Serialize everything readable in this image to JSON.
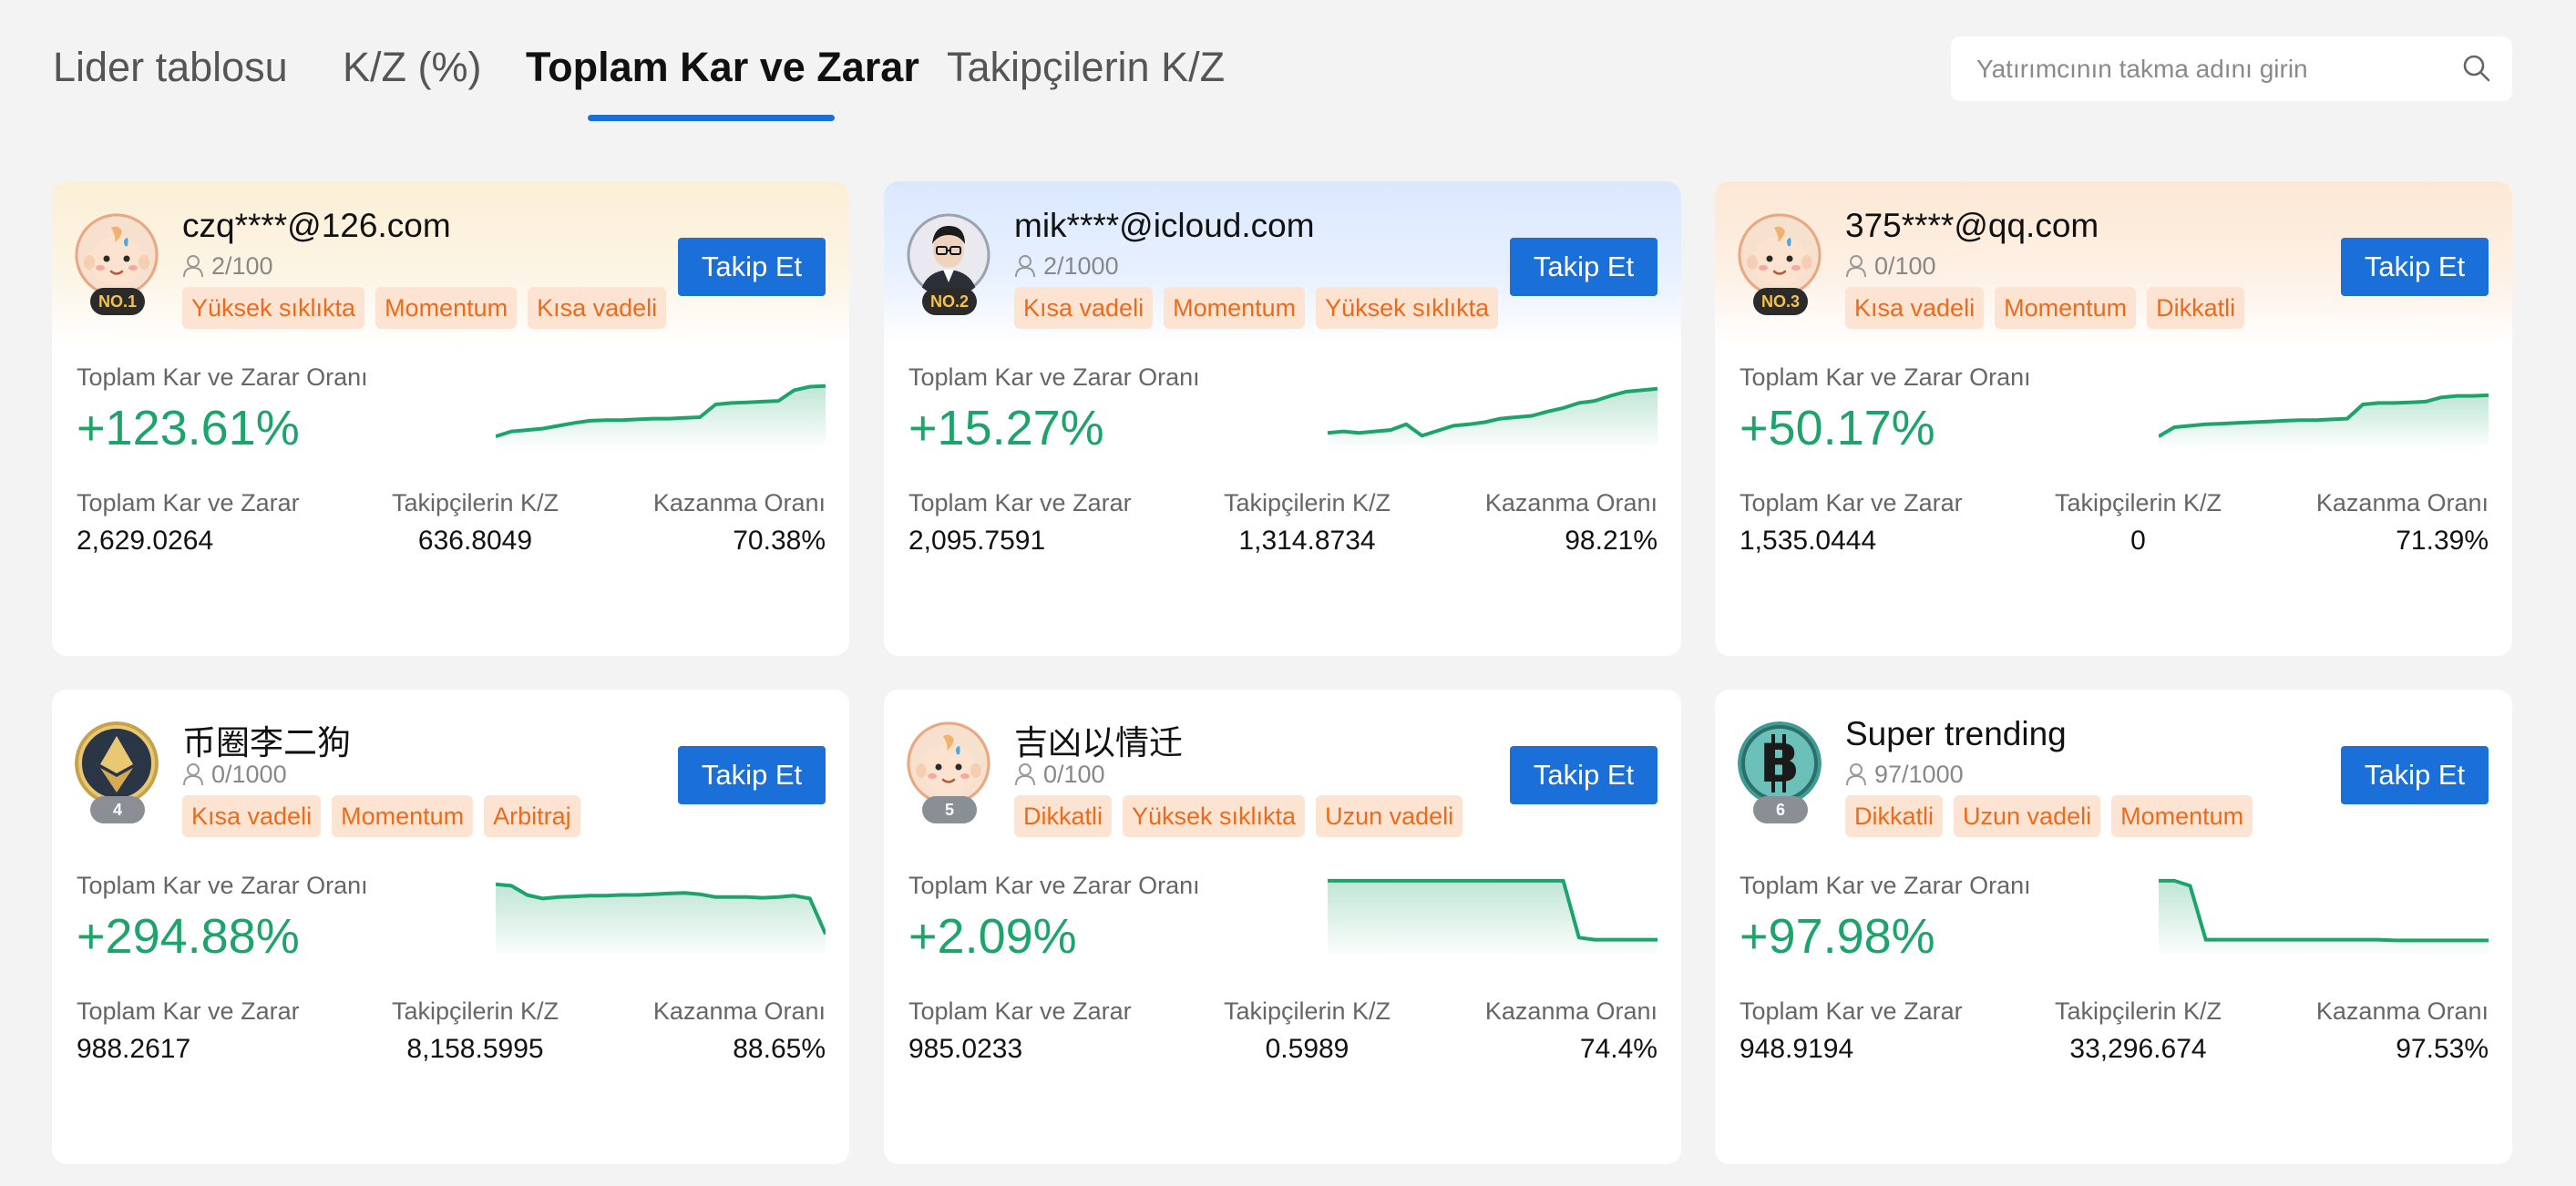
{
  "tabs": [
    {
      "label": "Lider tablosu"
    },
    {
      "label": "K/Z (%)"
    },
    {
      "label": "Toplam Kar ve Zarar"
    },
    {
      "label": "Takipçilerin K/Z"
    }
  ],
  "active_tab": 2,
  "search": {
    "placeholder": "Yatırımcının takma adını girin",
    "icon": "search-icon"
  },
  "labels": {
    "follow": "Takip Et",
    "ratio": "Toplam Kar ve Zarar Oranı",
    "total_pnl": "Toplam Kar ve Zarar",
    "follower_pnl": "Takipçilerin K/Z",
    "win_rate": "Kazanma Oranı"
  },
  "colors": {
    "accent": "#1a6fd9",
    "positive": "#1da46b",
    "tag_text": "#ee6a1a",
    "tag_bg": "#fde4d2"
  },
  "cards": [
    {
      "rank": "NO.1",
      "name": "czq****@126.com",
      "followers": "2/100",
      "avatar": "baby-avatar",
      "tags": [
        "Yüksek sıklıkta",
        "Momentum",
        "Kısa vadeli"
      ],
      "ratio": "+123.61%",
      "total_pnl": "2,629.0264",
      "follower_pnl": "636.8049",
      "win_rate": "70.38%",
      "trend": [
        0.05,
        0.12,
        0.14,
        0.16,
        0.2,
        0.24,
        0.27,
        0.28,
        0.28,
        0.29,
        0.3,
        0.3,
        0.31,
        0.32,
        0.5,
        0.52,
        0.53,
        0.54,
        0.55,
        0.7,
        0.75,
        0.76
      ]
    },
    {
      "rank": "NO.2",
      "name": "mik****@icloud.com",
      "followers": "2/1000",
      "avatar": "man-glasses-avatar",
      "tags": [
        "Kısa vadeli",
        "Momentum",
        "Yüksek sıklıkta"
      ],
      "ratio": "+15.27%",
      "total_pnl": "2,095.7591",
      "follower_pnl": "1,314.8734",
      "win_rate": "98.21%",
      "trend": [
        0.1,
        0.12,
        0.1,
        0.12,
        0.14,
        0.22,
        0.06,
        0.13,
        0.2,
        0.22,
        0.25,
        0.3,
        0.32,
        0.34,
        0.4,
        0.45,
        0.52,
        0.55,
        0.62,
        0.68,
        0.7,
        0.72
      ]
    },
    {
      "rank": "NO.3",
      "name": "375****@qq.com",
      "followers": "0/100",
      "avatar": "baby-avatar",
      "tags": [
        "Kısa vadeli",
        "Momentum",
        "Dikkatli"
      ],
      "ratio": "+50.17%",
      "total_pnl": "1,535.0444",
      "follower_pnl": "0",
      "win_rate": "71.39%",
      "trend": [
        0.05,
        0.18,
        0.2,
        0.22,
        0.23,
        0.24,
        0.25,
        0.26,
        0.27,
        0.28,
        0.28,
        0.29,
        0.3,
        0.5,
        0.52,
        0.52,
        0.53,
        0.54,
        0.6,
        0.62,
        0.62,
        0.63
      ]
    },
    {
      "rank": "4",
      "name": "币圈李二狗",
      "followers": "0/1000",
      "avatar": "eth-coin-avatar",
      "tags": [
        "Kısa vadeli",
        "Momentum",
        "Arbitraj"
      ],
      "ratio": "+294.88%",
      "total_pnl": "988.2617",
      "follower_pnl": "8,158.5995",
      "win_rate": "88.65%",
      "trend": [
        0.9,
        0.88,
        0.75,
        0.7,
        0.72,
        0.73,
        0.74,
        0.74,
        0.75,
        0.75,
        0.76,
        0.77,
        0.78,
        0.76,
        0.72,
        0.72,
        0.72,
        0.71,
        0.72,
        0.74,
        0.7,
        0.2
      ]
    },
    {
      "rank": "5",
      "name": "吉凶以情迁",
      "followers": "0/100",
      "avatar": "baby-avatar",
      "tags": [
        "Dikkatli",
        "Yüksek sıklıkta",
        "Uzun vadeli"
      ],
      "ratio": "+2.09%",
      "total_pnl": "985.0233",
      "follower_pnl": "0.5989",
      "win_rate": "74.4%",
      "trend": [
        0.95,
        0.95,
        0.95,
        0.95,
        0.95,
        0.95,
        0.95,
        0.95,
        0.95,
        0.95,
        0.95,
        0.95,
        0.95,
        0.95,
        0.95,
        0.95,
        0.15,
        0.12,
        0.12,
        0.12,
        0.12,
        0.12
      ]
    },
    {
      "rank": "6",
      "name": "Super trending",
      "followers": "97/1000",
      "avatar": "btc-coin-avatar",
      "tags": [
        "Dikkatli",
        "Uzun vadeli",
        "Momentum"
      ],
      "ratio": "+97.98%",
      "total_pnl": "948.9194",
      "follower_pnl": "33,296.674",
      "win_rate": "97.53%",
      "trend": [
        0.95,
        0.95,
        0.88,
        0.12,
        0.12,
        0.12,
        0.12,
        0.12,
        0.12,
        0.12,
        0.12,
        0.12,
        0.12,
        0.12,
        0.12,
        0.11,
        0.11,
        0.11,
        0.11,
        0.11,
        0.11,
        0.11
      ]
    }
  ]
}
